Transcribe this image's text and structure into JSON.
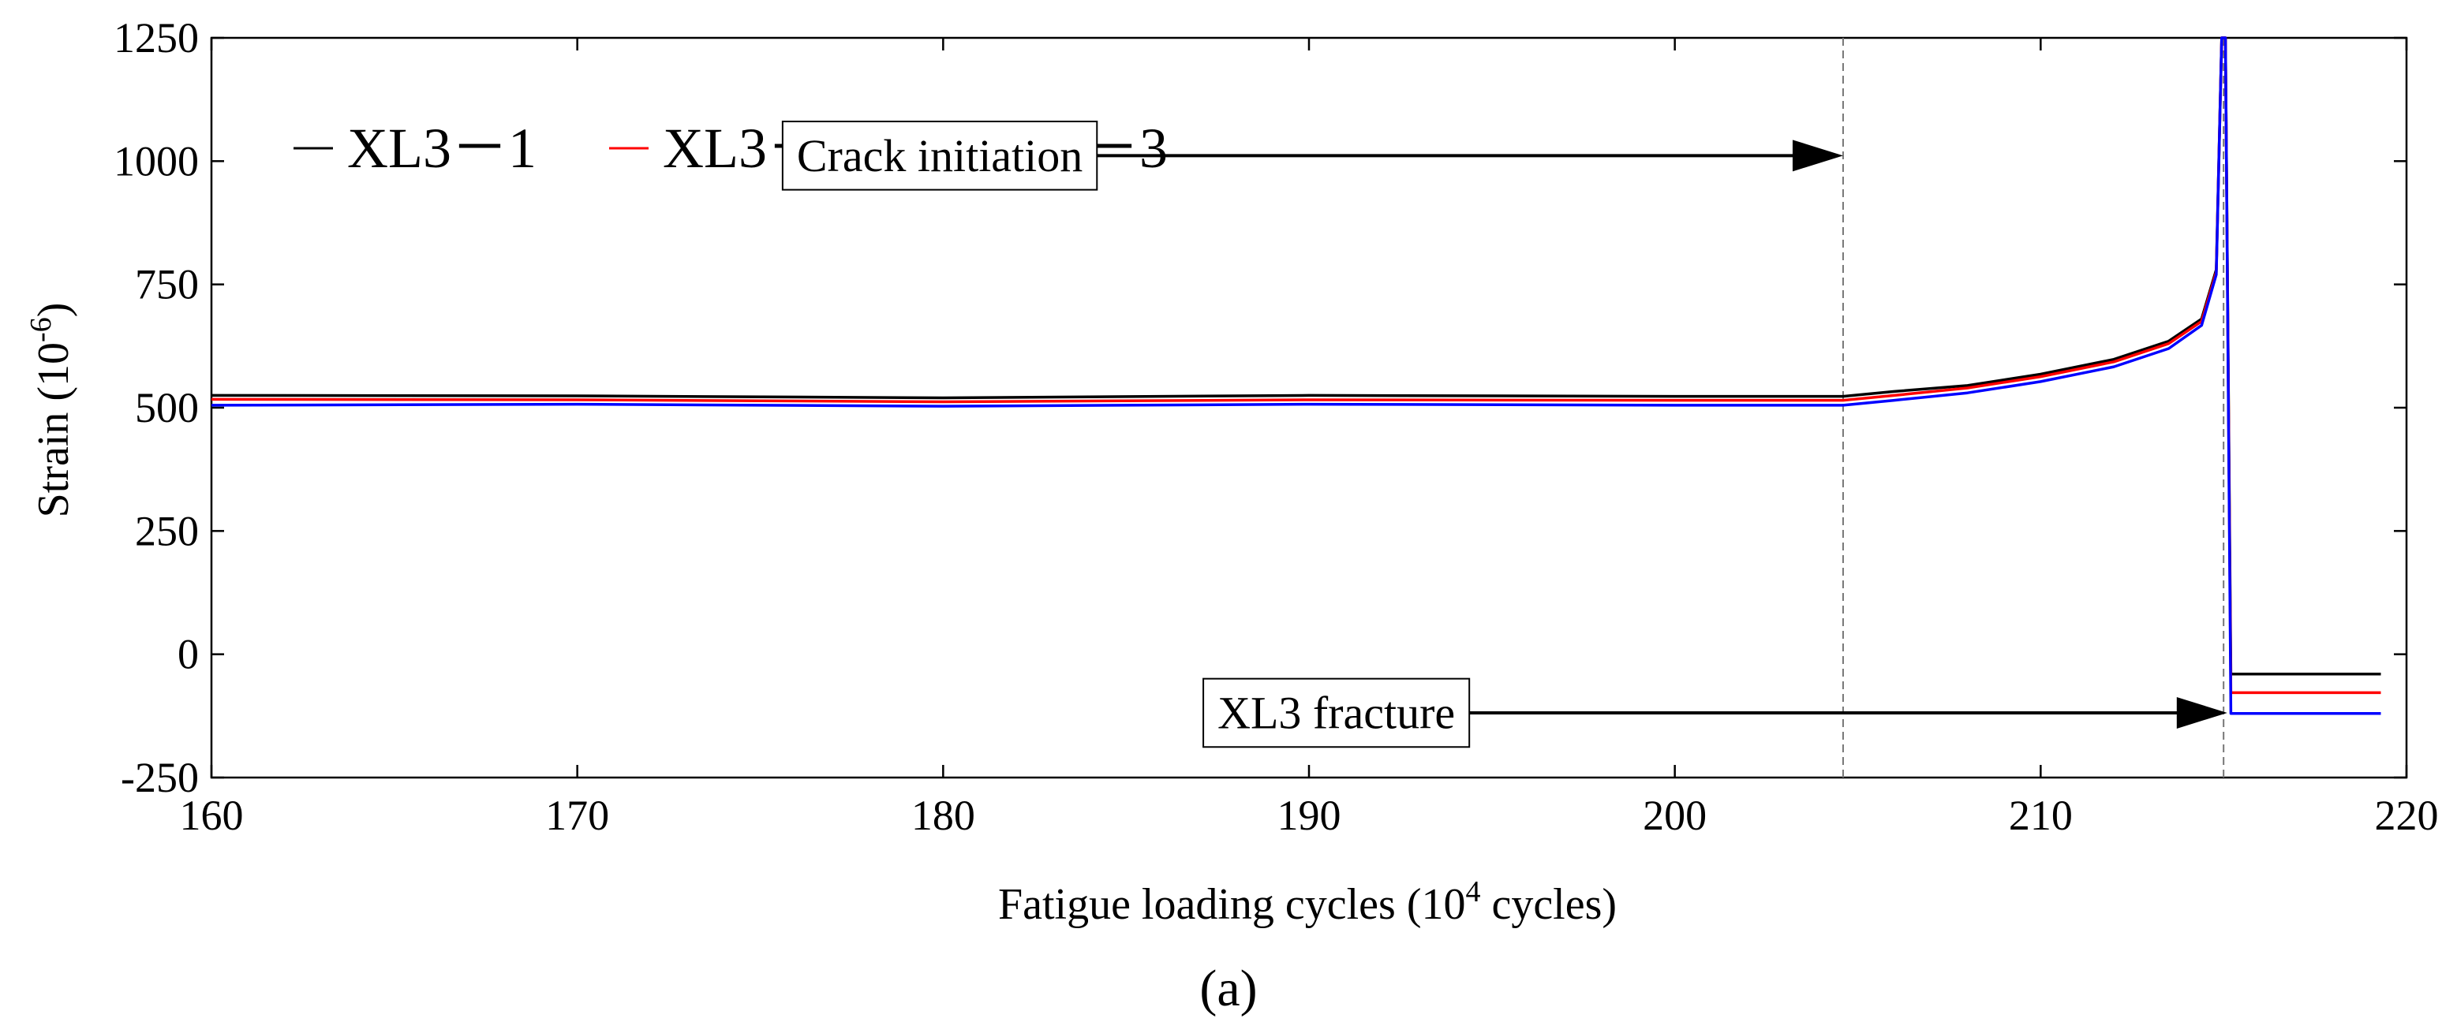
{
  "chart_data": {
    "type": "line",
    "title": "",
    "xlabel": "Fatigue loading cycles (10^4 cycles)",
    "xlabel_parts": {
      "pre": "Fatigue loading cycles (10",
      "sup": "4",
      "post": " cycles)"
    },
    "ylabel": "Strain (10^-6)",
    "ylabel_parts": {
      "pre": "Strain (10",
      "sup": "-6",
      "post": ")"
    },
    "xlim": [
      160,
      220
    ],
    "ylim": [
      -250,
      1250
    ],
    "xticks": [
      160,
      170,
      180,
      190,
      200,
      210,
      220
    ],
    "yticks": [
      -250,
      0,
      250,
      500,
      750,
      1000,
      1250
    ],
    "grid": false,
    "legend_position": "top-left",
    "panel_label": "(a)",
    "series": [
      {
        "name": "XL3－1",
        "color": "#000000",
        "x": [
          160,
          170,
          180,
          190,
          200,
          204.6,
          206,
          208,
          210,
          212,
          213.5,
          214.4,
          214.8,
          214.95,
          215.05,
          215.2,
          219.3
        ],
        "y": [
          525,
          524,
          520,
          525,
          523,
          523,
          533,
          545,
          568,
          598,
          635,
          680,
          780,
          1250,
          1250,
          -40,
          -40
        ]
      },
      {
        "name": "XL3－2",
        "color": "#ff0000",
        "x": [
          160,
          170,
          180,
          190,
          200,
          204.6,
          206,
          208,
          210,
          212,
          213.5,
          214.4,
          214.8,
          214.95,
          215.05,
          215.2,
          219.3
        ],
        "y": [
          517,
          516,
          512,
          516,
          515,
          515,
          525,
          540,
          563,
          593,
          630,
          675,
          775,
          1250,
          1250,
          -78,
          -78
        ]
      },
      {
        "name": "XL3－3",
        "color": "#0000ff",
        "x": [
          160,
          170,
          180,
          190,
          200,
          204.6,
          206,
          208,
          210,
          212,
          213.5,
          214.4,
          214.8,
          214.95,
          215.05,
          215.2,
          219.3
        ],
        "y": [
          505,
          507,
          503,
          507,
          505,
          505,
          515,
          530,
          553,
          583,
          620,
          667,
          770,
          1250,
          1250,
          -120,
          -120
        ]
      }
    ],
    "reference_lines": [
      {
        "x": 204.6
      },
      {
        "x": 215.0
      }
    ],
    "annotations": [
      {
        "text": "Crack initiation",
        "box_x": 176,
        "box_y": 980,
        "arrow_to": [
          204.6,
          990
        ]
      },
      {
        "text": "XL3 fracture",
        "box_x": 187.5,
        "box_y": -150,
        "arrow_to": [
          215.1,
          -135
        ]
      }
    ]
  }
}
